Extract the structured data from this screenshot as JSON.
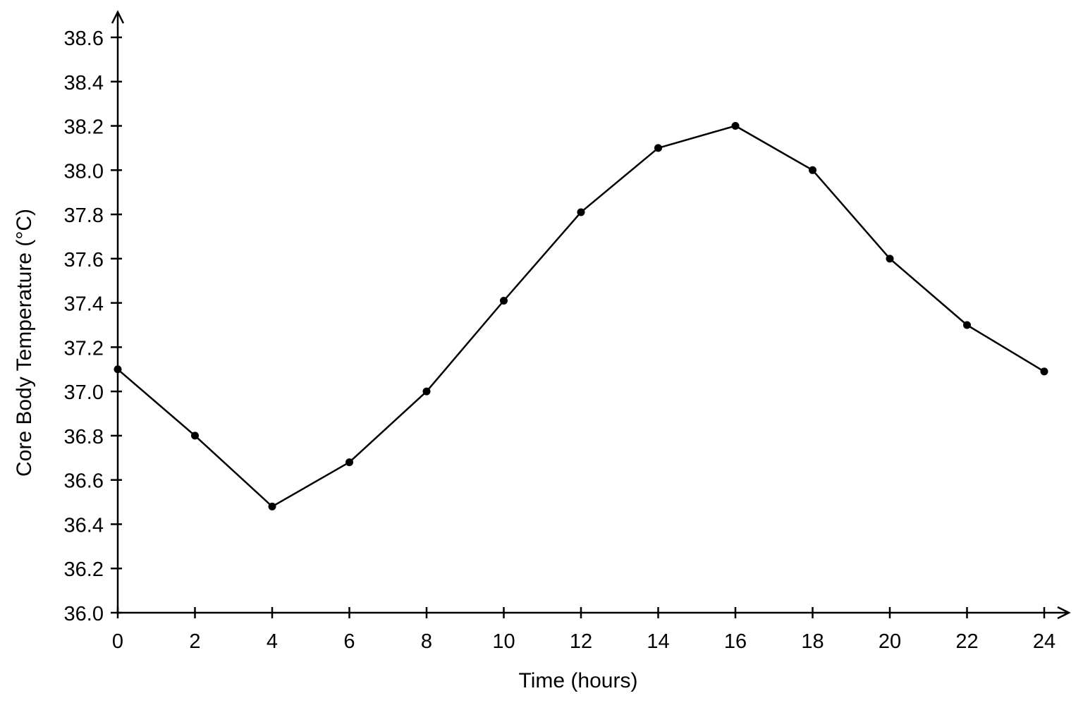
{
  "chart_data": {
    "type": "line",
    "title": "",
    "xlabel": "Time (hours)",
    "ylabel": "Core Body Temperature (°C)",
    "xlim": [
      0,
      24
    ],
    "ylim": [
      36.0,
      38.6
    ],
    "x_ticks": [
      "0",
      "2",
      "4",
      "6",
      "8",
      "10",
      "12",
      "14",
      "16",
      "18",
      "20",
      "22",
      "24"
    ],
    "y_ticks": [
      "36.0",
      "36.2",
      "36.4",
      "36.6",
      "36.8",
      "37.0",
      "37.2",
      "37.4",
      "37.6",
      "37.8",
      "38.0",
      "38.2",
      "38.4",
      "38.6"
    ],
    "grid": false,
    "legend": "none",
    "series": [
      {
        "x": [
          0,
          2,
          4,
          6,
          8,
          10,
          12,
          14,
          16,
          18,
          20,
          22,
          24
        ],
        "values": [
          37.1,
          36.8,
          36.48,
          36.68,
          37.0,
          37.41,
          37.81,
          38.1,
          38.2,
          38.0,
          37.6,
          37.3,
          37.09
        ],
        "color": "#000000",
        "marker": "circle"
      }
    ]
  }
}
